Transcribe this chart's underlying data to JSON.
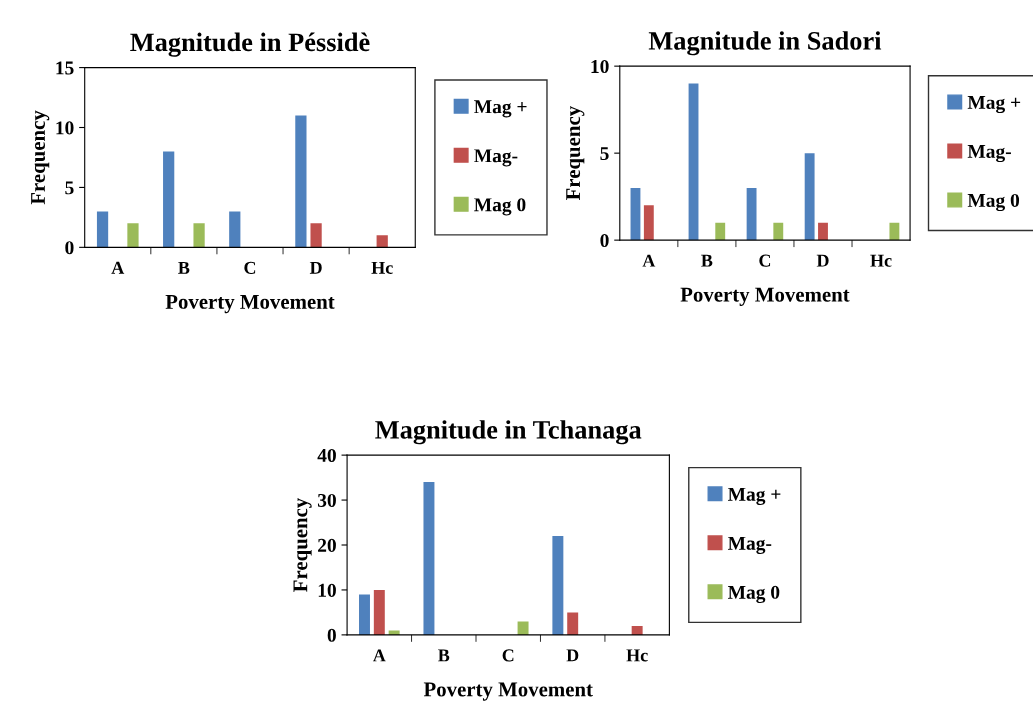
{
  "chart_data": [
    {
      "type": "bar",
      "title": "Magnitude in Péssidè",
      "xlabel": "Poverty Movement",
      "ylabel": "Frequency",
      "categories": [
        "A",
        "B",
        "C",
        "D",
        "Hc"
      ],
      "ylim": [
        0,
        15
      ],
      "yticks": [
        0,
        5,
        10,
        15
      ],
      "legend": "right",
      "grid": false,
      "series": [
        {
          "name": "Mag +",
          "color": "#4f81bd",
          "values": [
            3,
            8,
            3,
            11,
            0
          ]
        },
        {
          "name": "Mag-",
          "color": "#c0504d",
          "values": [
            0,
            0,
            0,
            2,
            1
          ]
        },
        {
          "name": "Mag 0",
          "color": "#9bbb59",
          "values": [
            2,
            2,
            0,
            0,
            0
          ]
        }
      ]
    },
    {
      "type": "bar",
      "title": "Magnitude in Sadori",
      "xlabel": "Poverty Movement",
      "ylabel": "Frequency",
      "categories": [
        "A",
        "B",
        "C",
        "D",
        "Hc"
      ],
      "ylim": [
        0,
        10
      ],
      "yticks": [
        0,
        5,
        10
      ],
      "legend": "right",
      "grid": false,
      "series": [
        {
          "name": "Mag +",
          "color": "#4f81bd",
          "values": [
            3,
            9,
            3,
            5,
            0
          ]
        },
        {
          "name": "Mag-",
          "color": "#c0504d",
          "values": [
            2,
            0,
            0,
            1,
            0
          ]
        },
        {
          "name": "Mag 0",
          "color": "#9bbb59",
          "values": [
            0,
            1,
            1,
            0,
            1
          ]
        }
      ]
    },
    {
      "type": "bar",
      "title": "Magnitude in Tchanaga",
      "xlabel": "Poverty Movement",
      "ylabel": "Frequency",
      "categories": [
        "A",
        "B",
        "C",
        "D",
        "Hc"
      ],
      "ylim": [
        0,
        40
      ],
      "yticks": [
        0,
        10,
        20,
        30,
        40
      ],
      "legend": "right",
      "grid": false,
      "series": [
        {
          "name": "Mag +",
          "color": "#4f81bd",
          "values": [
            9,
            34,
            0,
            22,
            0
          ]
        },
        {
          "name": "Mag-",
          "color": "#c0504d",
          "values": [
            10,
            0,
            0,
            5,
            2
          ]
        },
        {
          "name": "Mag 0",
          "color": "#9bbb59",
          "values": [
            1,
            0,
            3,
            0,
            0
          ]
        }
      ]
    }
  ]
}
